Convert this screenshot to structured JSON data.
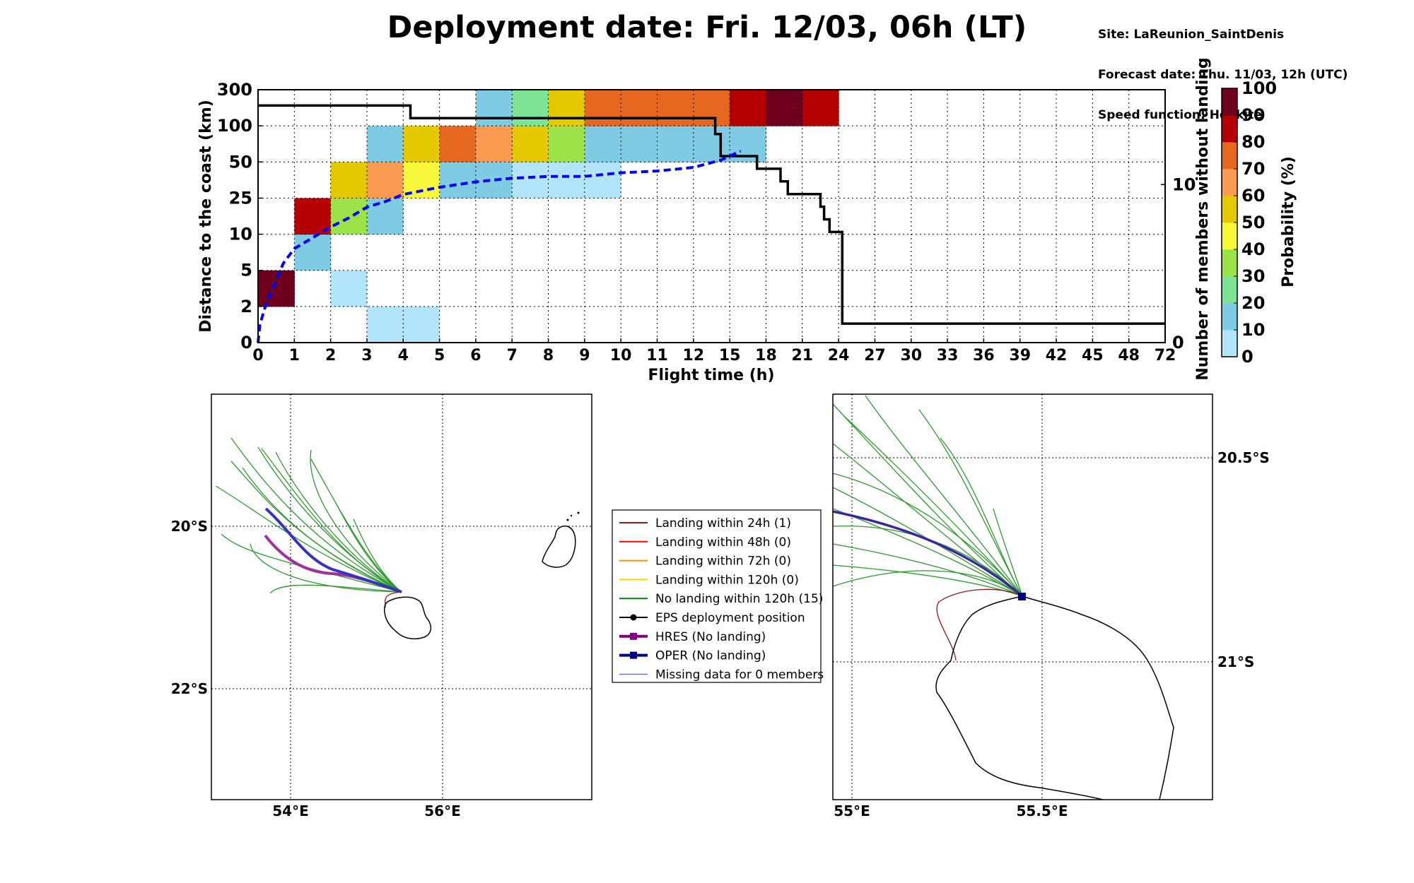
{
  "header": {
    "title": "Deployment date: Fri. 12/03, 06h (LT)",
    "site": "Site: LaReunion_SaintDenis",
    "forecast": "Forecast date: Thu. 11/03, 12h (UTC)",
    "speed": "Speed function: Helikite"
  },
  "chart_data": [
    {
      "type": "heatmap",
      "xlabel": "Flight time (h)",
      "ylabel": "Distance to the coast (km)",
      "y2label": "Number of members without landing",
      "x_ticks": [
        "0",
        "1",
        "2",
        "3",
        "4",
        "5",
        "6",
        "7",
        "8",
        "9",
        "10",
        "11",
        "12",
        "15",
        "18",
        "21",
        "24",
        "27",
        "30",
        "33",
        "36",
        "39",
        "42",
        "45",
        "48",
        "72"
      ],
      "y_ticks": [
        "0",
        "2",
        "5",
        "10",
        "25",
        "50",
        "100",
        "300"
      ],
      "y2_ticks": [
        "0",
        "10"
      ],
      "y2lim": [
        0,
        16
      ],
      "grid": true,
      "colorbar": {
        "label": "Probability (%)",
        "ticks": [
          "0",
          "10",
          "20",
          "30",
          "40",
          "50",
          "60",
          "70",
          "80",
          "90",
          "100"
        ],
        "colors": [
          "#b3e5fa",
          "#7ecbe3",
          "#7de395",
          "#9be348",
          "#f9f73a",
          "#e4c800",
          "#fb9b51",
          "#e66820",
          "#b40000",
          "#6e001e"
        ]
      },
      "cells": [
        {
          "x": 0,
          "y": 1,
          "p": 95
        },
        {
          "x": 1,
          "y": 2,
          "p": 15
        },
        {
          "x": 1,
          "y": 3,
          "p": 85
        },
        {
          "x": 2,
          "y": 1,
          "p": 5
        },
        {
          "x": 2,
          "y": 3,
          "p": 35
        },
        {
          "x": 2,
          "y": 4,
          "p": 55
        },
        {
          "x": 3,
          "y": 0,
          "p": 5
        },
        {
          "x": 4,
          "y": 0,
          "p": 5
        },
        {
          "x": 3,
          "y": 3,
          "p": 15
        },
        {
          "x": 3,
          "y": 4,
          "p": 65
        },
        {
          "x": 3,
          "y": 5,
          "p": 15
        },
        {
          "x": 4,
          "y": 4,
          "p": 45
        },
        {
          "x": 4,
          "y": 5,
          "p": 55
        },
        {
          "x": 5,
          "y": 4,
          "p": 15
        },
        {
          "x": 6,
          "y": 4,
          "p": 15
        },
        {
          "x": 7,
          "y": 4,
          "p": 5
        },
        {
          "x": 8,
          "y": 4,
          "p": 5
        },
        {
          "x": 9,
          "y": 4,
          "p": 5
        },
        {
          "x": 5,
          "y": 5,
          "p": 75
        },
        {
          "x": 6,
          "y": 5,
          "p": 65
        },
        {
          "x": 7,
          "y": 5,
          "p": 55
        },
        {
          "x": 8,
          "y": 5,
          "p": 35
        },
        {
          "x": 9,
          "y": 5,
          "p": 15
        },
        {
          "x": 10,
          "y": 5,
          "p": 15
        },
        {
          "x": 11,
          "y": 5,
          "p": 15
        },
        {
          "x": 12,
          "y": 5,
          "p": 15
        },
        {
          "x": 13,
          "y": 5,
          "p": 15
        },
        {
          "x": 6,
          "y": 6,
          "p": 15
        },
        {
          "x": 7,
          "y": 6,
          "p": 25
        },
        {
          "x": 8,
          "y": 6,
          "p": 55
        },
        {
          "x": 9,
          "y": 6,
          "p": 75
        },
        {
          "x": 10,
          "y": 6,
          "p": 75
        },
        {
          "x": 11,
          "y": 6,
          "p": 75
        },
        {
          "x": 12,
          "y": 6,
          "p": 75
        },
        {
          "x": 13,
          "y": 6,
          "p": 85
        },
        {
          "x": 14,
          "y": 6,
          "p": 95
        },
        {
          "x": 15,
          "y": 6,
          "p": 85
        }
      ],
      "series": [
        {
          "name": "",
          "style": "solid-black",
          "axis": "right",
          "points": [
            [
              0,
              15
            ],
            [
              4.2,
              15
            ],
            [
              4.2,
              14.2
            ],
            [
              12.6,
              14.2
            ],
            [
              12.6,
              13.2
            ],
            [
              12.75,
              13.2
            ],
            [
              12.75,
              11.8
            ],
            [
              13.75,
              11.8
            ],
            [
              13.75,
              11
            ],
            [
              14.4,
              11
            ],
            [
              14.4,
              10.2
            ],
            [
              14.6,
              10.2
            ],
            [
              14.6,
              9.4
            ],
            [
              15.5,
              9.4
            ],
            [
              15.5,
              8.6
            ],
            [
              15.6,
              8.6
            ],
            [
              15.6,
              7.8
            ],
            [
              15.75,
              7.8
            ],
            [
              15.75,
              7
            ],
            [
              16.1,
              7
            ],
            [
              16.1,
              1.2
            ],
            [
              25,
              1.2
            ]
          ]
        },
        {
          "name": "",
          "style": "dashed-blue",
          "axis": "left",
          "points": [
            [
              0,
              0
            ],
            [
              0.05,
              0.5
            ],
            [
              0.2,
              1.0
            ],
            [
              0.4,
              1.5
            ],
            [
              0.7,
              2.2
            ],
            [
              1,
              2.6
            ],
            [
              1.5,
              2.9
            ],
            [
              2,
              3.2
            ],
            [
              2.5,
              3.45
            ],
            [
              3,
              3.75
            ],
            [
              3.5,
              3.9
            ],
            [
              4,
              4.1
            ],
            [
              5,
              4.3
            ],
            [
              6,
              4.45
            ],
            [
              7,
              4.55
            ],
            [
              8,
              4.6
            ],
            [
              9,
              4.6
            ],
            [
              10,
              4.7
            ],
            [
              11,
              4.75
            ],
            [
              12,
              4.85
            ],
            [
              12.75,
              5.05
            ],
            [
              13.3,
              5.3
            ]
          ]
        }
      ]
    },
    {
      "type": "map",
      "name": "large-map",
      "lon_ticks": [
        "54°E",
        "56°E"
      ],
      "lat_ticks": [
        "20°S",
        "22°S"
      ]
    },
    {
      "type": "map",
      "name": "zoom-map",
      "lon_ticks": [
        "55°E",
        "55.5°E"
      ],
      "lat_ticks": [
        "20.5°S",
        "21°S"
      ]
    }
  ],
  "legend": {
    "items": [
      {
        "label": "Landing within 24h (1)",
        "color": "#8b1a1a",
        "marker": "none",
        "width": 2
      },
      {
        "label": "Landing within 48h (0)",
        "color": "#ff0000",
        "marker": "none",
        "width": 2
      },
      {
        "label": "Landing within 72h (0)",
        "color": "#ff8c00",
        "marker": "none",
        "width": 2
      },
      {
        "label": "Landing within 120h (0)",
        "color": "#ffd700",
        "marker": "none",
        "width": 2
      },
      {
        "label": "No landing within 120h (15)",
        "color": "#008000",
        "marker": "none",
        "width": 2
      },
      {
        "label": "EPS deployment position",
        "color": "#000000",
        "marker": "circle",
        "width": 2
      },
      {
        "label": "HRES (No landing)",
        "color": "#800080",
        "marker": "square",
        "width": 4
      },
      {
        "label": "OPER (No landing)",
        "color": "#000080",
        "marker": "square",
        "width": 4
      },
      {
        "label": "Missing data for 0 members",
        "color": "#4040ff",
        "marker": "none",
        "width": 1
      }
    ]
  }
}
